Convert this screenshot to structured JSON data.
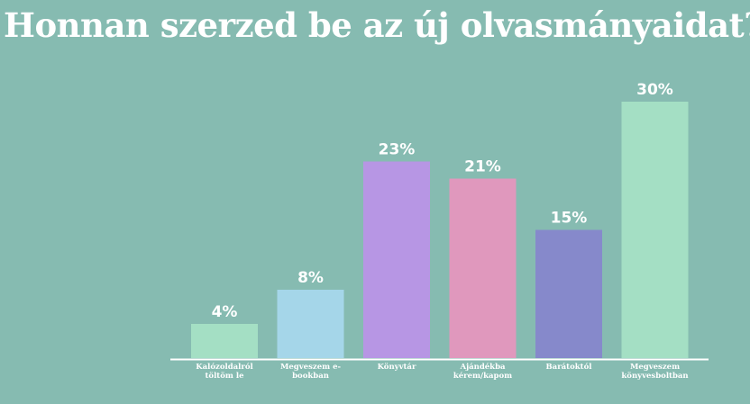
{
  "chart_data": {
    "type": "bar",
    "title": "Honnan szerzed be az új olvasmányaidat?",
    "categories": [
      [
        "Kalózoldalról",
        "töltöm le"
      ],
      [
        "Megveszem e-",
        "bookban"
      ],
      [
        "Könyvtár"
      ],
      [
        "Ajándékba",
        "kérem/kapom"
      ],
      [
        "Barátoktól"
      ],
      [
        "Megveszem",
        "könyvesboltban"
      ]
    ],
    "values": [
      4,
      8,
      23,
      21,
      15,
      30
    ],
    "value_labels": [
      "4%",
      "8%",
      "23%",
      "21%",
      "15%",
      "30%"
    ],
    "unit": "%",
    "ylim": [
      0,
      30
    ],
    "grid": false,
    "colors": [
      "#a4dfc4",
      "#a5d6e9",
      "#b796e4",
      "#e098bd",
      "#8689cb",
      "#a4dfc4"
    ],
    "axis_color": "#ffffff"
  }
}
